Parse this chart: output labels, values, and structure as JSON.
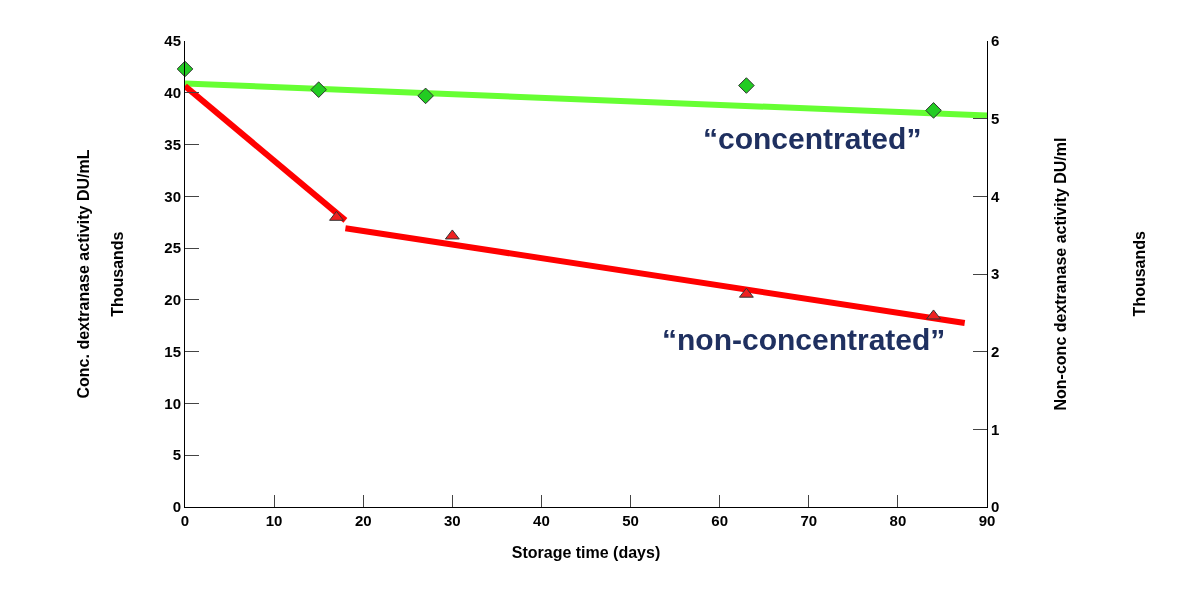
{
  "chart_data": {
    "type": "scatter",
    "xlabel": "Storage time (days)",
    "ylabel": "Conc. dextranase activity DU/mL",
    "y2label": "Non-conc dextranase activity DU/ml",
    "xlim": [
      0,
      90
    ],
    "xticks": [
      0,
      10,
      20,
      30,
      40,
      50,
      60,
      70,
      80,
      90
    ],
    "ylim": [
      0,
      45
    ],
    "yticks": [
      0,
      5,
      10,
      15,
      20,
      25,
      30,
      35,
      40,
      45
    ],
    "y2lim": [
      0,
      6
    ],
    "y2ticks": [
      0,
      1,
      2,
      3,
      4,
      5,
      6
    ],
    "series": [
      {
        "type": "line",
        "color": "#66ff33",
        "x": [
          0,
          90
        ],
        "values": [
          40.9,
          37.8
        ],
        "marker": "none"
      },
      {
        "color": "#22cc22",
        "x": [
          0,
          15,
          27,
          63,
          84
        ],
        "values": [
          42.3,
          40.3,
          39.7,
          40.7,
          38.3
        ],
        "marker": "diamond"
      },
      {
        "type": "line",
        "axis": "y2",
        "color": "#ff0000",
        "x": [
          0,
          18
        ],
        "values": [
          5.42,
          3.69
        ],
        "marker": "none"
      },
      {
        "type": "line",
        "axis": "y2",
        "color": "#ff0000",
        "x": [
          18,
          87.5
        ],
        "values": [
          3.59,
          2.37
        ],
        "marker": "none"
      },
      {
        "axis": "y2",
        "color": "#ee2222",
        "x": [
          17,
          30,
          63,
          84
        ],
        "values": [
          3.73,
          3.49,
          2.74,
          2.46
        ],
        "marker": "triangle"
      }
    ],
    "annotations": [
      "“concentrated”",
      "“non-concentrated”",
      "Thousands",
      "Thousands"
    ]
  }
}
